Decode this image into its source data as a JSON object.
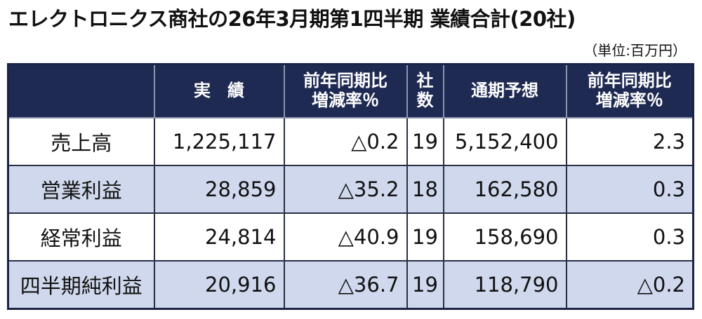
{
  "header": {
    "title": "エレクトロニクス商社の26年3月期第1四半期 業績合計(20社)",
    "unit": "（単位:百万円）"
  },
  "table": {
    "headers": [
      "実　績",
      [
        "前年同期比",
        "増減率％"
      ],
      [
        "社",
        "数"
      ],
      "通期予想",
      [
        "前年同期比",
        "増減率％"
      ]
    ],
    "rows": [
      [
        "売上高",
        "1,225,117",
        "△0.2",
        "19",
        "5,152,400",
        "2.3"
      ],
      [
        "営業利益",
        "28,859",
        "△35.2",
        "18",
        "162,580",
        "0.3"
      ],
      [
        "経常利益",
        "24,814",
        "△40.9",
        "19",
        "158,690",
        "0.3"
      ],
      [
        "四半期純利益",
        "20,916",
        "△36.7",
        "19",
        "118,790",
        "△0.2"
      ]
    ]
  }
}
